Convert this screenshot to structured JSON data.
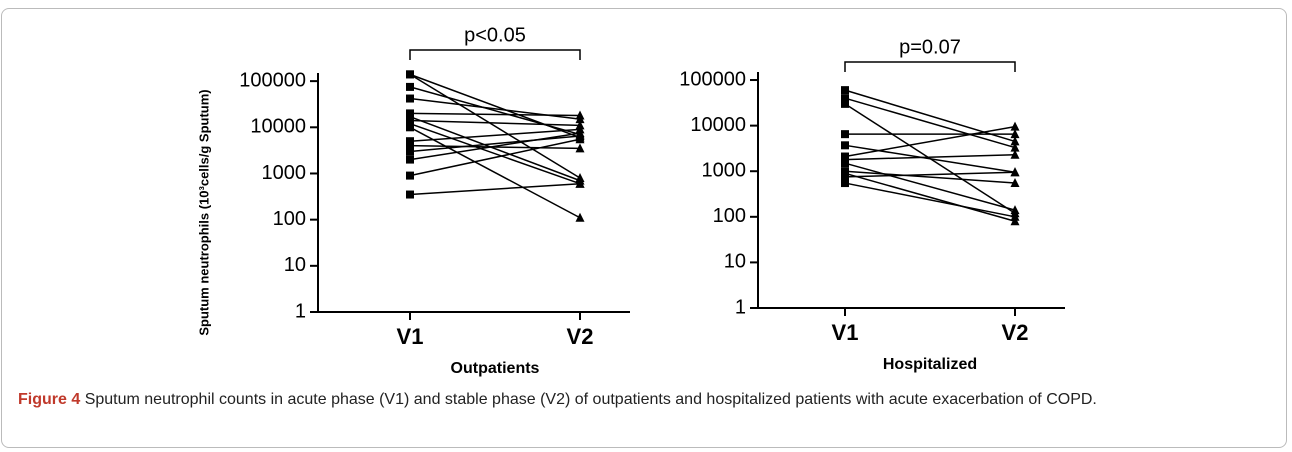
{
  "chart_data": [
    {
      "type": "line",
      "log_scale": true,
      "color": "#000000",
      "markers": [
        "square",
        "triangle"
      ],
      "ylabel": "Sputum neutrophils (10³cells/g Sputum)",
      "xlabel": "Outpatients",
      "annotation": "p<0.05",
      "categories": [
        "V1",
        "V2"
      ],
      "ylim": [
        1,
        150000
      ],
      "yticks": [
        1,
        10,
        100,
        1000,
        10000,
        100000
      ],
      "series": [
        {
          "values": [
            140000,
            6000
          ]
        },
        {
          "values": [
            140000,
            800
          ]
        },
        {
          "values": [
            75000,
            7000
          ]
        },
        {
          "values": [
            42000,
            15000
          ]
        },
        {
          "values": [
            20000,
            18000
          ]
        },
        {
          "values": [
            17000,
            700
          ]
        },
        {
          "values": [
            14000,
            11000
          ]
        },
        {
          "values": [
            12000,
            600
          ]
        },
        {
          "values": [
            10000,
            110
          ]
        },
        {
          "values": [
            5000,
            9000
          ]
        },
        {
          "values": [
            4000,
            3500
          ]
        },
        {
          "values": [
            3000,
            6500
          ]
        },
        {
          "values": [
            2000,
            7500
          ]
        },
        {
          "values": [
            900,
            5500
          ]
        },
        {
          "values": [
            350,
            600
          ]
        }
      ]
    },
    {
      "type": "line",
      "log_scale": true,
      "color": "#000000",
      "markers": [
        "square",
        "triangle"
      ],
      "xlabel": "Hospitalized",
      "annotation": "p=0.07",
      "categories": [
        "V1",
        "V2"
      ],
      "ylim": [
        1,
        150000
      ],
      "yticks": [
        1,
        10,
        100,
        1000,
        10000,
        100000
      ],
      "series": [
        {
          "values": [
            60000,
            4500
          ]
        },
        {
          "values": [
            40000,
            3300
          ]
        },
        {
          "values": [
            30000,
            120
          ]
        },
        {
          "values": [
            6500,
            6500
          ]
        },
        {
          "values": [
            3700,
            950
          ]
        },
        {
          "values": [
            2100,
            9500
          ]
        },
        {
          "values": [
            1800,
            2300
          ]
        },
        {
          "values": [
            1500,
            140
          ]
        },
        {
          "values": [
            900,
            80
          ]
        },
        {
          "values": [
            750,
            950
          ]
        },
        {
          "values": [
            550,
            100
          ]
        },
        {
          "values": [
            1000,
            550
          ]
        }
      ]
    }
  ],
  "caption": {
    "label": "Figure 4",
    "text": "Sputum neutrophil counts in acute phase (V1) and stable phase (V2) of outpatients and hospitalized patients with acute exacerbation of COPD."
  }
}
